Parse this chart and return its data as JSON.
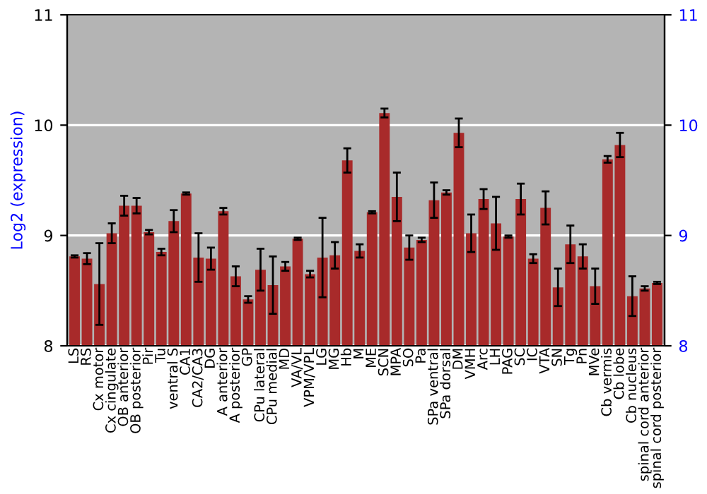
{
  "chart_data": {
    "type": "bar",
    "ylabel": "Log2 (expression)",
    "categories": [
      "LS",
      "RS",
      "Cx motor",
      "Cx cingulate",
      "OB anterior",
      "OB posterior",
      "Pir",
      "Tu",
      "ventral S",
      "CA1",
      "CA2/CA3",
      "DG",
      "A anterior",
      "A posterior",
      "GP",
      "CPu lateral",
      "CPu medial",
      "MD",
      "VA/VL",
      "VPM/VPL",
      "LG",
      "MG",
      "Hb",
      "M",
      "ME",
      "SCN",
      "MPA",
      "SO",
      "Pa",
      "SPa ventral",
      "SPa dorsal",
      "DM",
      "VMH",
      "Arc",
      "LH",
      "PAG",
      "SC",
      "IC",
      "VTA",
      "SN",
      "Tg",
      "Pn",
      "MVe",
      "Cb vermis",
      "Cb lobe",
      "Cb nucleus",
      "spinal cord anterior",
      "spinal cord posterior"
    ],
    "series": [
      {
        "color": "#a82a2a",
        "axis": "y",
        "values": [
          8.81,
          8.79,
          8.56,
          9.02,
          9.27,
          9.27,
          9.03,
          8.85,
          9.13,
          9.38,
          8.8,
          8.79,
          9.22,
          8.63,
          8.42,
          8.69,
          8.55,
          8.72,
          8.97,
          8.65,
          8.8,
          8.82,
          9.68,
          8.86,
          9.21,
          10.11,
          9.35,
          8.89,
          8.96,
          9.32,
          9.39,
          9.93,
          9.02,
          9.33,
          9.11,
          8.99,
          9.33,
          8.79,
          9.25,
          8.53,
          8.92,
          8.81,
          8.54,
          9.69,
          9.82,
          8.45,
          8.52,
          8.57
        ],
        "errors": [
          0.01,
          0.05,
          0.37,
          0.09,
          0.09,
          0.07,
          0.02,
          0.03,
          0.1,
          0.01,
          0.22,
          0.1,
          0.03,
          0.09,
          0.03,
          0.19,
          0.26,
          0.04,
          0.01,
          0.03,
          0.36,
          0.12,
          0.11,
          0.06,
          0.01,
          0.04,
          0.22,
          0.11,
          0.02,
          0.16,
          0.02,
          0.13,
          0.17,
          0.09,
          0.24,
          0.01,
          0.14,
          0.04,
          0.15,
          0.17,
          0.17,
          0.11,
          0.16,
          0.03,
          0.11,
          0.18,
          0.02,
          0.01
        ]
      }
    ],
    "ylim": [
      8,
      11
    ],
    "yticks": [
      8,
      9,
      10,
      11
    ],
    "y2lim": [
      8,
      11
    ],
    "y2ticks": [
      8,
      9,
      10,
      11
    ],
    "grid": "y",
    "legend": false
  }
}
